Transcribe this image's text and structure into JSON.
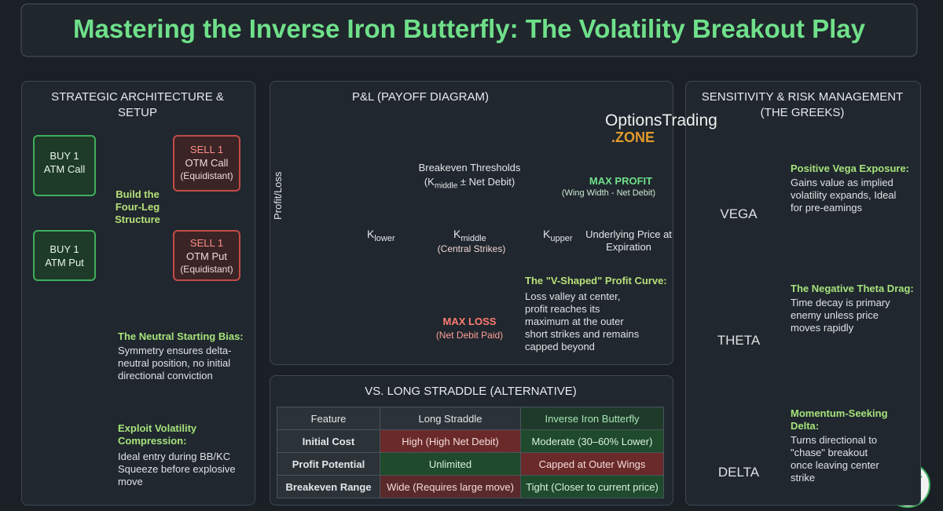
{
  "header": {
    "title": "Mastering the Inverse Iron Butterfly: The Volatility Breakout Play"
  },
  "setup": {
    "heading": "STRATEGIC ARCHITECTURE & SETUP",
    "legs": [
      {
        "action": "BUY 1",
        "detail": "ATM Call"
      },
      {
        "action": "SELL 1",
        "detail": "OTM Call",
        "note": "(Equidistant)"
      },
      {
        "action": "BUY 1",
        "detail": "ATM Put"
      },
      {
        "action": "SELL 1",
        "detail": "OTM Put",
        "note": "(Equidistant)"
      }
    ],
    "center": "Build the Four-Leg Structure",
    "notes": [
      {
        "title": "The Neutral Starting Bias:",
        "text": "Symmetry ensures delta-neutral position, no initial directional conviction"
      },
      {
        "title": "Exploit Volatility Compression:",
        "text": "Ideal entry during BB/KC Squeeze before explosive move"
      }
    ]
  },
  "payoff": {
    "heading": "P&L (PAYOFF DIAGRAM)",
    "logo": {
      "name": "OptionsTrading",
      "suffix": ".ZONE"
    },
    "y_label": "Profit/Loss",
    "x_label": "Underlying Price at Expiration",
    "breakeven": {
      "title": "Breakeven Thresholds",
      "open": "(K",
      "sub": "middle",
      "close": "± Net Debit)"
    },
    "max_profit": {
      "title": "MAX PROFIT",
      "note": "(Wing Width - Net Debit)"
    },
    "max_loss": {
      "title": "MAX LOSS",
      "note": "(Net Debit Paid)"
    },
    "strikes": [
      {
        "symbol": "K",
        "sub": "lower"
      },
      {
        "symbol": "K",
        "sub": "middle",
        "note": "(Central Strikes)"
      },
      {
        "symbol": "K",
        "sub": "upper"
      }
    ],
    "curve_note": {
      "title": "The \"V-Shaped\" Profit Curve:",
      "text": "Loss valley at center, profit reaches its maximum at the outer short strikes and remains capped beyond"
    }
  },
  "comparison": {
    "heading": "VS. LONG STRADDLE (ALTERNATIVE)",
    "header": [
      "Feature",
      "Long Straddle",
      "Inverse Iron Butterfly"
    ],
    "rows": [
      [
        "Initial Cost",
        "High (High Net Debit)",
        "Moderate (30–60% Lower)"
      ],
      [
        "Profit Potential",
        "Unlimited",
        "Capped at Outer Wings"
      ],
      [
        "Breakeven Range",
        "Wide (Requires large move)",
        "Tight (Closer to current price)"
      ]
    ]
  },
  "greeks": {
    "heading": "SENSITIVITY & RISK MANAGEMENT (THE GREEKS)",
    "items": [
      {
        "label": "VEGA",
        "title": "Positive Vega Exposure:",
        "text": "Gains value as implied volatility expands, Ideal for pre-eamings"
      },
      {
        "label": "THETA",
        "title": "The Negative Theta Drag:",
        "text": "Time decay is primary enemy unless price moves rapidly"
      },
      {
        "label": "DELTA",
        "title": "Momentum-Seeking Delta:",
        "text": "Turns directional to \"chase\" breakout once leaving center strike"
      }
    ]
  }
}
